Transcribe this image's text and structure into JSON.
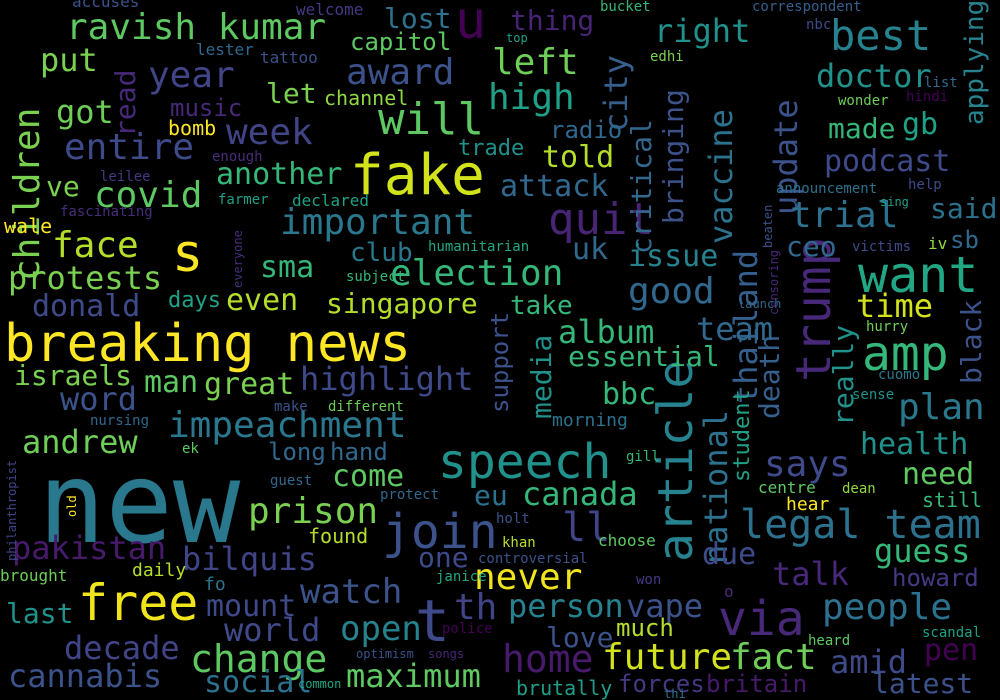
{
  "words": [
    {
      "text": "breaking news",
      "color": "#fde725"
    },
    {
      "text": "new",
      "color": "#2a788e"
    },
    {
      "text": "fake",
      "color": "#d2e21b"
    },
    {
      "text": "s",
      "color": "#fde725"
    },
    {
      "text": "trump",
      "color": "#482878"
    },
    {
      "text": "t",
      "color": "#3e4a89"
    },
    {
      "text": "free",
      "color": "#f0e51c"
    },
    {
      "text": "article",
      "color": "#26828e"
    },
    {
      "text": "want",
      "color": "#22a785"
    },
    {
      "text": "amp",
      "color": "#35b779"
    },
    {
      "text": "speech",
      "color": "#21918c"
    },
    {
      "text": "join",
      "color": "#3b528b"
    },
    {
      "text": "via",
      "color": "#482878"
    },
    {
      "text": "legal team",
      "color": "#2c728e"
    },
    {
      "text": "children",
      "color": "#7ad151"
    },
    {
      "text": "best",
      "color": "#26828e"
    },
    {
      "text": "quit",
      "color": "#482475"
    },
    {
      "text": "important",
      "color": "#2a788e"
    },
    {
      "text": "ravish kumar",
      "color": "#5ec962"
    },
    {
      "text": "year",
      "color": "#414487"
    },
    {
      "text": "award",
      "color": "#3b528b"
    },
    {
      "text": "will",
      "color": "#5ec962"
    },
    {
      "text": "u",
      "color": "#440154"
    },
    {
      "text": "vaccine",
      "color": "#2c728e"
    },
    {
      "text": "update",
      "color": "#3b528b"
    },
    {
      "text": "thailand",
      "color": "#355f8d"
    },
    {
      "text": "covid",
      "color": "#5ec962"
    },
    {
      "text": "face",
      "color": "#b5de2b"
    },
    {
      "text": "protests",
      "color": "#7ad151"
    },
    {
      "text": "election",
      "color": "#35b779"
    },
    {
      "text": "good",
      "color": "#31688e"
    },
    {
      "text": "impeachment",
      "color": "#2a788e"
    },
    {
      "text": "change",
      "color": "#5ec962"
    },
    {
      "text": "people",
      "color": "#2c728e"
    },
    {
      "text": "plan",
      "color": "#2a788e"
    },
    {
      "text": "trial",
      "color": "#2c728e"
    },
    {
      "text": "entire",
      "color": "#3e4a89"
    },
    {
      "text": "week",
      "color": "#414487"
    },
    {
      "text": "left",
      "color": "#6ece58"
    },
    {
      "text": "high",
      "color": "#1fa187"
    },
    {
      "text": "city",
      "color": "#355f8d"
    },
    {
      "text": "right",
      "color": "#21918c"
    },
    {
      "text": "doctor",
      "color": "#21918c"
    },
    {
      "text": "made",
      "color": "#35b779"
    },
    {
      "text": "podcast",
      "color": "#3e4a89"
    },
    {
      "text": "bringing",
      "color": "#3b528b"
    },
    {
      "text": "critical",
      "color": "#31688e"
    },
    {
      "text": "told",
      "color": "#b5de2b"
    },
    {
      "text": "attack",
      "color": "#31688e"
    },
    {
      "text": "highlight",
      "color": "#3e4a89"
    },
    {
      "text": "canada",
      "color": "#35b779"
    },
    {
      "text": "never",
      "color": "#f0e51c"
    },
    {
      "text": "future",
      "color": "#d2e21b"
    },
    {
      "text": "fact",
      "color": "#6ece58"
    },
    {
      "text": "home",
      "color": "#481a6c"
    },
    {
      "text": "maximum",
      "color": "#5ec962"
    },
    {
      "text": "cannabis",
      "color": "#3b528b"
    },
    {
      "text": "decade",
      "color": "#414487"
    },
    {
      "text": "social",
      "color": "#2c728e"
    },
    {
      "text": "open",
      "color": "#26828e"
    },
    {
      "text": "world",
      "color": "#3e4a89"
    },
    {
      "text": "mount",
      "color": "#3e4a89"
    },
    {
      "text": "watch",
      "color": "#3b528b"
    },
    {
      "text": "prison",
      "color": "#7ad151"
    },
    {
      "text": "bilquis",
      "color": "#414487"
    },
    {
      "text": "pakistan",
      "color": "#481a6c"
    },
    {
      "text": "andrew",
      "color": "#6ece58"
    },
    {
      "text": "word",
      "color": "#3b528b"
    },
    {
      "text": "israels",
      "color": "#7ad151"
    },
    {
      "text": "man",
      "color": "#5ec962"
    },
    {
      "text": "great",
      "color": "#7ad151"
    },
    {
      "text": "donald",
      "color": "#3e4a89"
    },
    {
      "text": "even",
      "color": "#b5de2b"
    },
    {
      "text": "singapore",
      "color": "#b5de2b"
    },
    {
      "text": "sma",
      "color": "#35b779"
    },
    {
      "text": "another",
      "color": "#35b779"
    },
    {
      "text": "album",
      "color": "#35b779"
    },
    {
      "text": "essential",
      "color": "#35b779"
    },
    {
      "text": "bbc",
      "color": "#35b779"
    },
    {
      "text": "media",
      "color": "#21918c"
    },
    {
      "text": "support",
      "color": "#3b528b"
    },
    {
      "text": "national",
      "color": "#2c728e"
    },
    {
      "text": "death",
      "color": "#355f8d"
    },
    {
      "text": "student",
      "color": "#1fa187"
    },
    {
      "text": "really",
      "color": "#21918c"
    },
    {
      "text": "black",
      "color": "#3b528b"
    },
    {
      "text": "time",
      "color": "#d2e21b"
    },
    {
      "text": "team",
      "color": "#31688e"
    },
    {
      "text": "says",
      "color": "#3e4a89"
    },
    {
      "text": "health",
      "color": "#21918c"
    },
    {
      "text": "need",
      "color": "#5ec962"
    },
    {
      "text": "guess",
      "color": "#35b779"
    },
    {
      "text": "talk",
      "color": "#482878"
    },
    {
      "text": "howard",
      "color": "#443983"
    },
    {
      "text": "pen",
      "color": "#440154"
    },
    {
      "text": "amid",
      "color": "#3e4a89"
    },
    {
      "text": "latest",
      "color": "#3b528b"
    },
    {
      "text": "britain",
      "color": "#481a6c"
    },
    {
      "text": "forces",
      "color": "#443983"
    },
    {
      "text": "brutally",
      "color": "#1f9e89"
    },
    {
      "text": "vape",
      "color": "#3b528b"
    },
    {
      "text": "person",
      "color": "#26828e"
    },
    {
      "text": "th",
      "color": "#414487"
    },
    {
      "text": "love",
      "color": "#3b528b"
    },
    {
      "text": "much",
      "color": "#b5de2b"
    },
    {
      "text": "due",
      "color": "#3e4a89"
    },
    {
      "text": "ll",
      "color": "#414487"
    },
    {
      "text": "eu",
      "color": "#2c728e"
    },
    {
      "text": "one",
      "color": "#3e4a89"
    },
    {
      "text": "come",
      "color": "#5ec962"
    },
    {
      "text": "long",
      "color": "#31688e"
    },
    {
      "text": "hand",
      "color": "#31688e"
    },
    {
      "text": "ceo",
      "color": "#31688e"
    },
    {
      "text": "said",
      "color": "#2c728e"
    },
    {
      "text": "gb",
      "color": "#1fa187"
    },
    {
      "text": "applying",
      "color": "#26828e"
    },
    {
      "text": "sb",
      "color": "#31688e"
    },
    {
      "text": "issue",
      "color": "#26828e"
    },
    {
      "text": "uk",
      "color": "#31688e"
    },
    {
      "text": "take",
      "color": "#35b779"
    },
    {
      "text": "club",
      "color": "#2a788e"
    },
    {
      "text": "days",
      "color": "#1fa187"
    },
    {
      "text": "got",
      "color": "#6ece58"
    },
    {
      "text": "put",
      "color": "#7ad151"
    },
    {
      "text": "music",
      "color": "#482878"
    },
    {
      "text": "read",
      "color": "#482878"
    },
    {
      "text": "let",
      "color": "#7ad151"
    },
    {
      "text": "ve",
      "color": "#7ad151"
    },
    {
      "text": "capitol",
      "color": "#5ec962"
    },
    {
      "text": "lost",
      "color": "#2c728e"
    },
    {
      "text": "channel",
      "color": "#90d743"
    },
    {
      "text": "radio",
      "color": "#31688e"
    },
    {
      "text": "trade",
      "color": "#21918c"
    },
    {
      "text": "thing",
      "color": "#482475"
    },
    {
      "text": "bomb",
      "color": "#fde725"
    },
    {
      "text": "wale",
      "color": "#fde725"
    },
    {
      "text": "lester",
      "color": "#31688e"
    },
    {
      "text": "tattoo",
      "color": "#3b528b"
    },
    {
      "text": "welcome",
      "color": "#443983"
    },
    {
      "text": "accuses",
      "color": "#3b528b"
    },
    {
      "text": "bucket",
      "color": "#35b779"
    },
    {
      "text": "correspondent",
      "color": "#355f8d"
    },
    {
      "text": "nbc",
      "color": "#3e4a89"
    },
    {
      "text": "top",
      "color": "#1fa187"
    },
    {
      "text": "edhi",
      "color": "#7ad151"
    },
    {
      "text": "list",
      "color": "#31688e"
    },
    {
      "text": "hindi",
      "color": "#440154"
    },
    {
      "text": "wonder",
      "color": "#6ece58"
    },
    {
      "text": "announcement",
      "color": "#2c728e"
    },
    {
      "text": "help",
      "color": "#3e4a89"
    },
    {
      "text": "sing",
      "color": "#1fa187"
    },
    {
      "text": "beaten",
      "color": "#3b528b"
    },
    {
      "text": "censoring",
      "color": "#482878"
    },
    {
      "text": "victims",
      "color": "#3e4a89"
    },
    {
      "text": "iv",
      "color": "#90d743"
    },
    {
      "text": "launch",
      "color": "#31688e"
    },
    {
      "text": "hurry",
      "color": "#6ece58"
    },
    {
      "text": "cuomo",
      "color": "#2a788e"
    },
    {
      "text": "sense",
      "color": "#21918c"
    },
    {
      "text": "enough",
      "color": "#472d7b"
    },
    {
      "text": "leilee",
      "color": "#443983"
    },
    {
      "text": "fascinating",
      "color": "#472d7b"
    },
    {
      "text": "farmer",
      "color": "#1fa187"
    },
    {
      "text": "declared",
      "color": "#1fa187"
    },
    {
      "text": "everyone",
      "color": "#472d7b"
    },
    {
      "text": "humanitarian",
      "color": "#22a785"
    },
    {
      "text": "subject",
      "color": "#35b779"
    },
    {
      "text": "make",
      "color": "#3b528b"
    },
    {
      "text": "different",
      "color": "#6ece58"
    },
    {
      "text": "nursing",
      "color": "#31688e"
    },
    {
      "text": "morning",
      "color": "#2c728e"
    },
    {
      "text": "ek",
      "color": "#5ec962"
    },
    {
      "text": "philanthropist",
      "color": "#414487"
    },
    {
      "text": "old",
      "color": "#fde725"
    },
    {
      "text": "guest",
      "color": "#31688e"
    },
    {
      "text": "protect",
      "color": "#31688e"
    },
    {
      "text": "found",
      "color": "#b5de2b"
    },
    {
      "text": "holt",
      "color": "#3b528b"
    },
    {
      "text": "khan",
      "color": "#b5de2b"
    },
    {
      "text": "controversial",
      "color": "#3b528b"
    },
    {
      "text": "choose",
      "color": "#5ec962"
    },
    {
      "text": "janice",
      "color": "#22a785"
    },
    {
      "text": "gill",
      "color": "#35b779"
    },
    {
      "text": "centre",
      "color": "#5ec962"
    },
    {
      "text": "hear",
      "color": "#fde725"
    },
    {
      "text": "dean",
      "color": "#90d743"
    },
    {
      "text": "still",
      "color": "#35b779"
    },
    {
      "text": "won",
      "color": "#443983"
    },
    {
      "text": "police",
      "color": "#440154"
    },
    {
      "text": "optimism",
      "color": "#3b528b"
    },
    {
      "text": "songs",
      "color": "#482878"
    },
    {
      "text": "heard",
      "color": "#5ec962"
    },
    {
      "text": "scandal",
      "color": "#1fa187"
    },
    {
      "text": "common",
      "color": "#22a785"
    },
    {
      "text": "thi",
      "color": "#2c728e"
    },
    {
      "text": "brought",
      "color": "#6ece58"
    },
    {
      "text": "daily",
      "color": "#b5de2b"
    },
    {
      "text": "fo",
      "color": "#2c728e"
    },
    {
      "text": "last",
      "color": "#21918c"
    },
    {
      "text": "o",
      "color": "#472d7b"
    }
  ]
}
